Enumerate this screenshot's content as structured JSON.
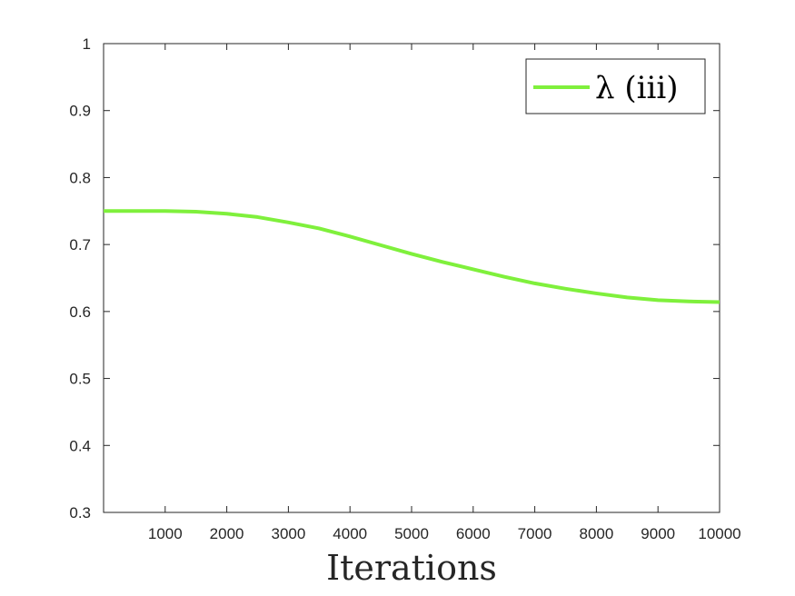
{
  "chart_data": {
    "type": "line",
    "xlabel": "Iterations",
    "ylabel": "",
    "xlim": [
      0,
      10000
    ],
    "ylim": [
      0.3,
      1
    ],
    "xticks": [
      1000,
      2000,
      3000,
      4000,
      5000,
      6000,
      7000,
      8000,
      9000,
      10000
    ],
    "xtick_labels": [
      "1000",
      "2000",
      "3000",
      "4000",
      "5000",
      "6000",
      "7000",
      "8000",
      "9000",
      "10000"
    ],
    "yticks": [
      0.3,
      0.4,
      0.5,
      0.6,
      0.7,
      0.8,
      0.9,
      1
    ],
    "ytick_labels": [
      "0.3",
      "0.4",
      "0.5",
      "0.6",
      "0.7",
      "0.8",
      "0.9",
      "1"
    ],
    "grid": false,
    "legend": {
      "position": "top-right",
      "entries": [
        "λ (iii)"
      ]
    },
    "series": [
      {
        "name": "λ (iii)",
        "color": "#7ff03c",
        "x": [
          0,
          500,
          1000,
          1500,
          2000,
          2500,
          3000,
          3500,
          4000,
          4500,
          5000,
          5500,
          6000,
          6500,
          7000,
          7500,
          8000,
          8500,
          9000,
          9500,
          10000
        ],
        "y": [
          0.75,
          0.75,
          0.75,
          0.749,
          0.746,
          0.741,
          0.733,
          0.724,
          0.712,
          0.699,
          0.686,
          0.674,
          0.663,
          0.652,
          0.642,
          0.634,
          0.627,
          0.621,
          0.617,
          0.615,
          0.614
        ]
      }
    ]
  }
}
